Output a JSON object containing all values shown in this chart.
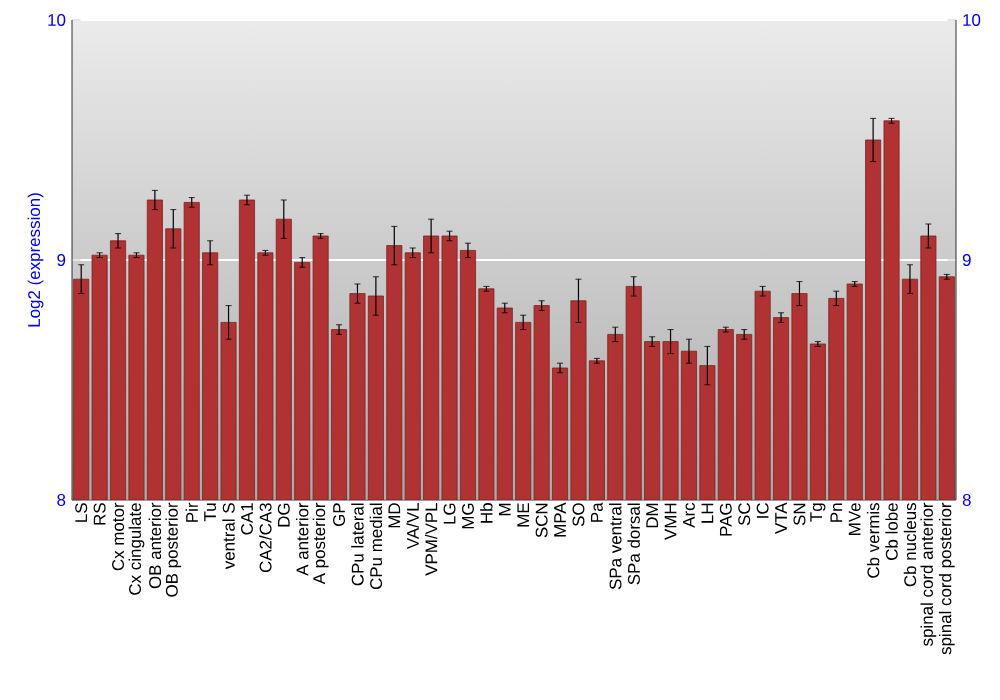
{
  "chart_data": {
    "type": "bar",
    "ylabel": "Log2 (expression)",
    "categories": [
      "LS",
      "RS",
      "Cx motor",
      "Cx cingulate",
      "OB anterior",
      "OB posterior",
      "Pir",
      "Tu",
      "ventral S",
      "CA1",
      "CA2/CA3",
      "DG",
      "A anterior",
      "A posterior",
      "GP",
      "CPu lateral",
      "CPu medial",
      "MD",
      "VA/VL",
      "VPM/VPL",
      "LG",
      "MG",
      "Hb",
      "M",
      "ME",
      "SCN",
      "MPA",
      "SO",
      "Pa",
      "SPa ventral",
      "SPa dorsal",
      "DM",
      "VMH",
      "Arc",
      "LH",
      "PAG",
      "SC",
      "IC",
      "VTA",
      "SN",
      "Tg",
      "Pn",
      "MVe",
      "Cb vermis",
      "Cb lobe",
      "Cb nucleus",
      "spinal cord anterior",
      "spinal cord posterior"
    ],
    "values": [
      8.92,
      9.02,
      9.08,
      9.02,
      9.25,
      9.13,
      9.24,
      9.03,
      8.74,
      9.25,
      9.03,
      9.17,
      8.99,
      9.1,
      8.71,
      8.86,
      8.85,
      9.06,
      9.03,
      9.1,
      9.1,
      9.04,
      8.88,
      8.8,
      8.74,
      8.81,
      8.55,
      8.83,
      8.58,
      8.69,
      8.89,
      8.66,
      8.66,
      8.62,
      8.56,
      8.71,
      8.69,
      8.87,
      8.76,
      8.86,
      8.65,
      8.84,
      8.9,
      9.5,
      9.58,
      8.92,
      9.1,
      8.93
    ],
    "errors": [
      0.06,
      0.01,
      0.03,
      0.01,
      0.04,
      0.08,
      0.02,
      0.05,
      0.07,
      0.02,
      0.01,
      0.08,
      0.02,
      0.01,
      0.02,
      0.04,
      0.08,
      0.08,
      0.02,
      0.07,
      0.02,
      0.03,
      0.01,
      0.02,
      0.03,
      0.02,
      0.02,
      0.09,
      0.01,
      0.03,
      0.04,
      0.02,
      0.05,
      0.05,
      0.08,
      0.01,
      0.02,
      0.02,
      0.02,
      0.05,
      0.01,
      0.03,
      0.01,
      0.09,
      0.01,
      0.06,
      0.05,
      0.01
    ],
    "color": "#b03232",
    "ylim": [
      8,
      10
    ],
    "yticks": [
      8,
      9,
      10
    ],
    "y2lim": [
      8,
      10
    ],
    "y2ticks": [
      8,
      9,
      10
    ],
    "grid": "y"
  }
}
